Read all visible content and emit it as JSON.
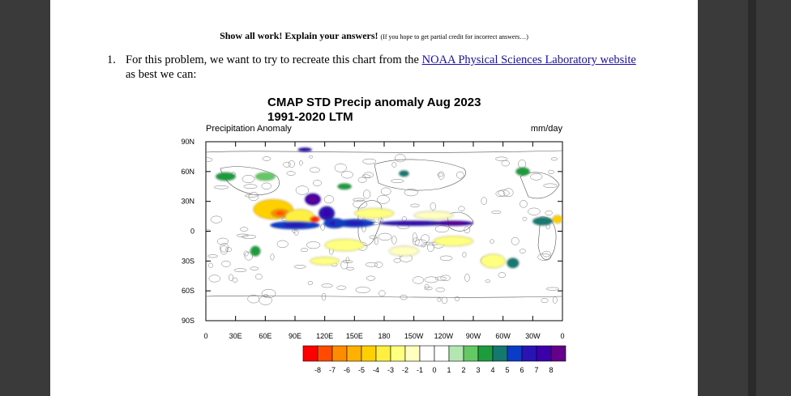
{
  "header": {
    "bold_text": "Show all work! Explain your answers!",
    "small_text": "(If you hope to get partial credit for incorrect answers…)"
  },
  "question": {
    "number": "1.",
    "text_before": "For this problem, we want to try to recreate this chart from the ",
    "link_text": "NOAA Physical Sciences Laboratory website",
    "text_after": " as best we can:"
  },
  "colors": {
    "page": "#ffffff",
    "background": "#3a3a3a",
    "link": "#1a0dab"
  },
  "chart_data": {
    "type": "heatmap",
    "title": "CMAP STD Precip anomaly Aug 2023",
    "subtitle": "1991-2020 LTM",
    "left_label": "Precipitation Anomaly",
    "right_label": "mm/day",
    "y_ticks": [
      "90N",
      "60N",
      "30N",
      "0",
      "30S",
      "60S",
      "90S"
    ],
    "y_values": [
      90,
      60,
      30,
      0,
      -30,
      -60,
      -90
    ],
    "x_ticks": [
      "0",
      "30E",
      "60E",
      "90E",
      "120E",
      "150E",
      "180",
      "150W",
      "120W",
      "90W",
      "60W",
      "30W",
      "0"
    ],
    "x_values": [
      0,
      30,
      60,
      90,
      120,
      150,
      180,
      210,
      240,
      270,
      300,
      330,
      360
    ],
    "xlim": [
      0,
      360
    ],
    "ylim": [
      -90,
      90
    ],
    "colorbar": {
      "labels": [
        "-8",
        "-7",
        "-6",
        "-5",
        "-4",
        "-3",
        "-2",
        "-1",
        "0",
        "1",
        "2",
        "3",
        "4",
        "5",
        "6",
        "7",
        "8"
      ],
      "colors": [
        "#ff0000",
        "#ff4a00",
        "#ff8c00",
        "#ffb000",
        "#ffd000",
        "#ffef40",
        "#ffff80",
        "#ffffc0",
        "#ffffff",
        "#ffffff",
        "#b4e6b4",
        "#64c864",
        "#1e9b3c",
        "#14786e",
        "#0a3cc8",
        "#2814b4",
        "#3c00aa",
        "#64008c"
      ]
    },
    "anomaly_regions": [
      {
        "lon": 68,
        "lat": 22,
        "value": -4,
        "w": 40,
        "h": 20
      },
      {
        "lon": 75,
        "lat": 18,
        "value": -6,
        "w": 18,
        "h": 8
      },
      {
        "lon": 95,
        "lat": 14,
        "value": -3,
        "w": 30,
        "h": 16
      },
      {
        "lon": 110,
        "lat": 12,
        "value": -7,
        "w": 10,
        "h": 6
      },
      {
        "lon": 90,
        "lat": 6,
        "value": 5,
        "w": 50,
        "h": 8
      },
      {
        "lon": 108,
        "lat": 32,
        "value": 7,
        "w": 16,
        "h": 12
      },
      {
        "lon": 122,
        "lat": 18,
        "value": 6,
        "w": 16,
        "h": 14
      },
      {
        "lon": 130,
        "lat": 8,
        "value": 5,
        "w": 22,
        "h": 10
      },
      {
        "lon": 150,
        "lat": 8,
        "value": 5,
        "w": 40,
        "h": 8
      },
      {
        "lon": 210,
        "lat": 8,
        "value": 6,
        "w": 70,
        "h": 5
      },
      {
        "lon": 250,
        "lat": 8,
        "value": 7,
        "w": 40,
        "h": 5
      },
      {
        "lon": 170,
        "lat": 18,
        "value": -2,
        "w": 40,
        "h": 10
      },
      {
        "lon": 230,
        "lat": 16,
        "value": -1,
        "w": 40,
        "h": 8
      },
      {
        "lon": 140,
        "lat": -14,
        "value": -2,
        "w": 40,
        "h": 12
      },
      {
        "lon": 200,
        "lat": -20,
        "value": -1,
        "w": 30,
        "h": 10
      },
      {
        "lon": 120,
        "lat": -30,
        "value": -2,
        "w": 30,
        "h": 8
      },
      {
        "lon": 290,
        "lat": -30,
        "value": -2,
        "w": 25,
        "h": 14
      },
      {
        "lon": 340,
        "lat": 10,
        "value": 4,
        "w": 20,
        "h": 8
      },
      {
        "lon": 355,
        "lat": 12,
        "value": -4,
        "w": 10,
        "h": 8
      },
      {
        "lon": 310,
        "lat": -32,
        "value": 4,
        "w": 12,
        "h": 10
      },
      {
        "lon": 20,
        "lat": 55,
        "value": 3,
        "w": 20,
        "h": 8
      },
      {
        "lon": 60,
        "lat": 55,
        "value": 2,
        "w": 20,
        "h": 8
      },
      {
        "lon": 140,
        "lat": 45,
        "value": 3,
        "w": 14,
        "h": 6
      },
      {
        "lon": 200,
        "lat": 58,
        "value": 4,
        "w": 10,
        "h": 6
      },
      {
        "lon": 50,
        "lat": -20,
        "value": 3,
        "w": 10,
        "h": 10
      },
      {
        "lon": 320,
        "lat": 60,
        "value": 3,
        "w": 14,
        "h": 8
      },
      {
        "lon": 100,
        "lat": 82,
        "value": 6,
        "w": 14,
        "h": 4
      },
      {
        "lon": 250,
        "lat": -10,
        "value": -2,
        "w": 40,
        "h": 10
      }
    ]
  }
}
